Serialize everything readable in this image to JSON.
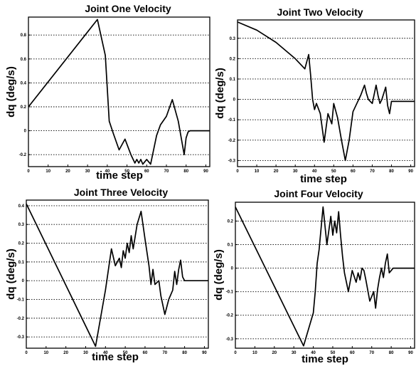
{
  "figure": {
    "xlabel": "time step",
    "ylabel": "dq (deg/s)"
  },
  "chart_data": [
    {
      "type": "line",
      "title": "Joint One Velocity",
      "xlabel": "time step",
      "ylabel": "dq (deg/s)",
      "xlim": [
        0,
        92
      ],
      "ylim": [
        -0.3,
        0.95
      ],
      "xticks": [
        0,
        10,
        20,
        30,
        40,
        50,
        60,
        70,
        80,
        90
      ],
      "xtick_labels": [
        "0",
        "10",
        "20",
        "30",
        "40",
        "50",
        "60",
        "70",
        "80",
        "90"
      ],
      "yticks": [
        -0.2,
        0,
        0.2,
        0.4,
        0.6,
        0.8
      ],
      "ytick_labels": [
        "-0.2",
        "0",
        "0.2",
        "0.4",
        "0.6",
        "0.8"
      ],
      "grid": "dashed-horizontal",
      "series": [
        {
          "x": [
            0,
            35,
            39,
            41,
            43,
            46,
            49,
            52,
            54,
            55,
            56,
            57,
            58,
            60,
            62,
            63,
            65,
            67,
            70,
            73,
            76,
            79,
            80,
            81,
            82,
            92
          ],
          "y": [
            0.2,
            0.93,
            0.63,
            0.08,
            -0.02,
            -0.16,
            -0.07,
            -0.2,
            -0.27,
            -0.24,
            -0.27,
            -0.24,
            -0.28,
            -0.24,
            -0.28,
            -0.2,
            -0.04,
            0.05,
            0.12,
            0.26,
            0.08,
            -0.2,
            -0.06,
            -0.01,
            0,
            0
          ]
        }
      ]
    },
    {
      "type": "line",
      "title": "Joint Two Velocity",
      "xlabel": "time step",
      "ylabel": "dq (deg/s)",
      "xlim": [
        0,
        92
      ],
      "ylim": [
        -0.33,
        0.39
      ],
      "xticks": [
        0,
        10,
        20,
        30,
        40,
        50,
        60,
        70,
        80,
        90
      ],
      "xtick_labels": [
        "0",
        "10",
        "20",
        "30",
        "40",
        "50",
        "60",
        "70",
        "80",
        "90"
      ],
      "yticks": [
        -0.3,
        -0.2,
        -0.1,
        0,
        0.1,
        0.2,
        0.3
      ],
      "ytick_labels": [
        "-0.3",
        "-0.2",
        "-0.1",
        "0",
        "0.1",
        "0.2",
        "0.3"
      ],
      "grid": "dashed-horizontal",
      "series": [
        {
          "x": [
            0,
            10,
            20,
            30,
            35,
            37,
            38,
            39,
            40,
            41,
            43,
            45,
            47,
            49,
            50,
            52,
            54,
            56,
            58,
            60,
            62,
            64,
            66,
            67,
            68,
            70,
            72,
            73,
            74,
            75,
            77,
            78,
            79,
            80,
            81,
            92
          ],
          "y": [
            0.38,
            0.34,
            0.28,
            0.2,
            0.15,
            0.22,
            0.12,
            0.0,
            -0.05,
            -0.02,
            -0.07,
            -0.21,
            -0.07,
            -0.12,
            -0.02,
            -0.09,
            -0.2,
            -0.3,
            -0.2,
            -0.06,
            -0.02,
            0.02,
            0.07,
            0.03,
            0.0,
            -0.02,
            0.07,
            0.02,
            -0.02,
            0.0,
            0.06,
            -0.03,
            -0.07,
            -0.01,
            -0.01,
            -0.01
          ]
        }
      ]
    },
    {
      "type": "line",
      "title": "Joint Three Velocity",
      "xlabel": "time step",
      "ylabel": "dq (deg/s)",
      "xlim": [
        0,
        92
      ],
      "ylim": [
        -0.36,
        0.43
      ],
      "xticks": [
        0,
        10,
        20,
        30,
        40,
        50,
        60,
        70,
        80,
        90
      ],
      "xtick_labels": [
        "0",
        "10",
        "20",
        "30",
        "40",
        "50",
        "60",
        "70",
        "80",
        "90"
      ],
      "yticks": [
        -0.3,
        -0.2,
        -0.1,
        0,
        0.1,
        0.2,
        0.3,
        0.4
      ],
      "ytick_labels": [
        "-0.3",
        "-0.2",
        "-0.1",
        "0",
        "0.1",
        "0.2",
        "0.3",
        "0.4"
      ],
      "grid": "dashed-horizontal",
      "series": [
        {
          "x": [
            0,
            35,
            40,
            43,
            45,
            47,
            48,
            49,
            50,
            51,
            52,
            53,
            54,
            56,
            58,
            60,
            62,
            63,
            64,
            65,
            67,
            68,
            70,
            72,
            74,
            75,
            76,
            77,
            78,
            79,
            80,
            92
          ],
          "y": [
            0.41,
            -0.35,
            -0.05,
            0.17,
            0.08,
            0.12,
            0.07,
            0.16,
            0.12,
            0.2,
            0.15,
            0.24,
            0.17,
            0.3,
            0.37,
            0.22,
            0.08,
            -0.02,
            0.06,
            -0.02,
            0.0,
            -0.08,
            -0.18,
            -0.1,
            -0.05,
            0.05,
            -0.02,
            0.06,
            0.11,
            0.02,
            0.0,
            0.0
          ]
        }
      ]
    },
    {
      "type": "line",
      "title": "Joint Four Velocity",
      "xlabel": "time step",
      "ylabel": "dq (deg/s)",
      "xlim": [
        0,
        92
      ],
      "ylim": [
        -0.34,
        0.28
      ],
      "xticks": [
        0,
        10,
        20,
        30,
        40,
        50,
        60,
        70,
        80,
        90
      ],
      "xtick_labels": [
        "0",
        "10",
        "20",
        "30",
        "40",
        "50",
        "60",
        "70",
        "80",
        "90"
      ],
      "yticks": [
        -0.3,
        -0.2,
        -0.1,
        0,
        0.1,
        0.2
      ],
      "ytick_labels": [
        "-0.3",
        "-0.2",
        "-0.1",
        "0",
        "0.1",
        "0.2"
      ],
      "grid": "dashed-horizontal",
      "series": [
        {
          "x": [
            0,
            35,
            40,
            41,
            42,
            43,
            45,
            47,
            49,
            50,
            51,
            52,
            53,
            54,
            55,
            56,
            58,
            60,
            62,
            63,
            64,
            65,
            66,
            67,
            69,
            71,
            72,
            73,
            74,
            75,
            76,
            77,
            78,
            79,
            80,
            81,
            92
          ],
          "y": [
            0.26,
            -0.33,
            -0.19,
            -0.1,
            0.02,
            0.08,
            0.26,
            0.1,
            0.22,
            0.14,
            0.2,
            0.15,
            0.24,
            0.14,
            0.05,
            -0.02,
            -0.1,
            -0.01,
            -0.06,
            -0.02,
            -0.05,
            0.0,
            -0.01,
            -0.05,
            -0.14,
            -0.1,
            -0.17,
            -0.09,
            -0.04,
            0.0,
            -0.04,
            0.02,
            0.06,
            -0.02,
            -0.01,
            0.0,
            0.0
          ]
        }
      ]
    }
  ]
}
